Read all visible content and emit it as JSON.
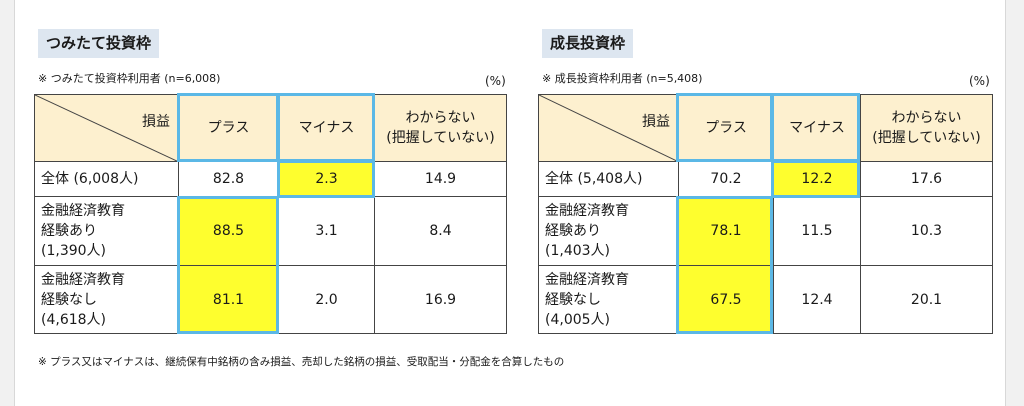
{
  "left": {
    "title": "つみたて投資枠",
    "note": "※ つみたて投資枠利用者 (n=6,008)",
    "unit": "(%)",
    "corner": "損益",
    "headers": [
      "プラス",
      "マイナス",
      "わからない\n(把握していない)"
    ],
    "rows": [
      {
        "label": "全体 (6,008人)",
        "values": [
          "82.8",
          "2.3",
          "14.9"
        ]
      },
      {
        "label": "金融経済教育\n経験あり\n(1,390人)",
        "values": [
          "88.5",
          "3.1",
          "8.4"
        ]
      },
      {
        "label": "金融経済教育\n経験なし\n(4,618人)",
        "values": [
          "81.1",
          "2.0",
          "16.9"
        ]
      }
    ]
  },
  "right": {
    "title": "成長投資枠",
    "note": "※ 成長投資枠利用者 (n=5,408)",
    "unit": "(%)",
    "corner": "損益",
    "headers": [
      "プラス",
      "マイナス",
      "わからない\n(把握していない)"
    ],
    "rows": [
      {
        "label": "全体 (5,408人)",
        "values": [
          "70.2",
          "12.2",
          "17.6"
        ]
      },
      {
        "label": "金融経済教育\n経験あり\n(1,403人)",
        "values": [
          "78.1",
          "11.5",
          "10.3"
        ]
      },
      {
        "label": "金融経済教育\n経験なし\n(4,005人)",
        "values": [
          "67.5",
          "12.4",
          "20.1"
        ]
      }
    ]
  },
  "footnote": "※ プラス又はマイナスは、継続保有中銘柄の含み損益、売却した銘柄の損益、受取配当・分配金を合算したもの",
  "colors": {
    "highlight": "#fefe2e",
    "header_bg": "#fdf0cf",
    "box_border": "#5bb8e6",
    "title_bg": "#dde6f0"
  }
}
